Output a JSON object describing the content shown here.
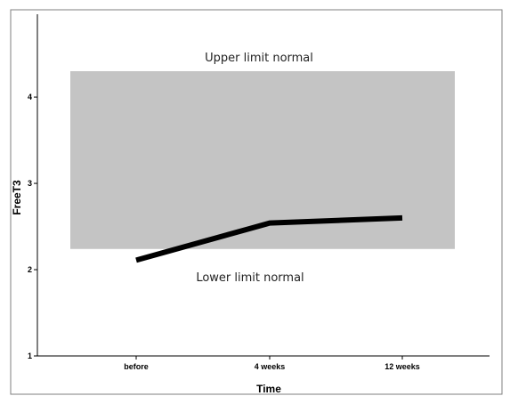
{
  "chart_data": {
    "type": "line",
    "xlabel": "Time",
    "ylabel": "FreeT3",
    "categories": [
      "before",
      "4 weeks",
      "12 weeks"
    ],
    "yticks": [
      1,
      2,
      3,
      4
    ],
    "ylim": [
      1,
      4.96
    ],
    "series": [
      {
        "values": [
          2.11,
          2.54,
          2.6
        ]
      }
    ],
    "normal_range": {
      "lower": 2.24,
      "upper": 4.3
    },
    "annotations": {
      "upper": "Upper limit normal",
      "lower": "Lower limit normal"
    },
    "grid": false,
    "colors": {
      "line": "#000000",
      "band": "#c4c4c4",
      "frame": "#7f7f7f"
    }
  }
}
